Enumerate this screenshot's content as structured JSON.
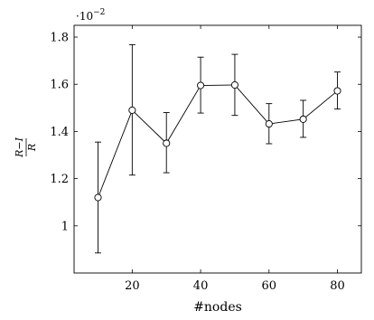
{
  "chart_data": {
    "type": "line",
    "xlabel": "#nodes",
    "ylabel_numerator": "R−I",
    "ylabel_denominator": "R",
    "y_scale_text": "·10",
    "y_scale_exponent": "−2",
    "xlim": [
      3,
      87
    ],
    "ylim": [
      0.8,
      1.85
    ],
    "xticks": [
      20,
      40,
      60,
      80
    ],
    "yticks": [
      1,
      1.2,
      1.4,
      1.6,
      1.8
    ],
    "xtick_labels": [
      "20",
      "40",
      "60",
      "80"
    ],
    "ytick_labels": [
      "1",
      "1.2",
      "1.4",
      "1.6",
      "1.8"
    ],
    "grid": false,
    "series": [
      {
        "marker": "circle",
        "color": "#000000",
        "x": [
          10,
          20,
          30,
          40,
          50,
          60,
          70,
          80
        ],
        "y": [
          1.12,
          1.49,
          1.35,
          1.595,
          1.597,
          1.432,
          1.452,
          1.572
        ],
        "err_low": [
          0.885,
          1.215,
          1.225,
          1.478,
          1.468,
          1.348,
          1.375,
          1.495
        ],
        "err_high": [
          1.355,
          1.768,
          1.48,
          1.715,
          1.727,
          1.518,
          1.532,
          1.652
        ]
      }
    ]
  }
}
